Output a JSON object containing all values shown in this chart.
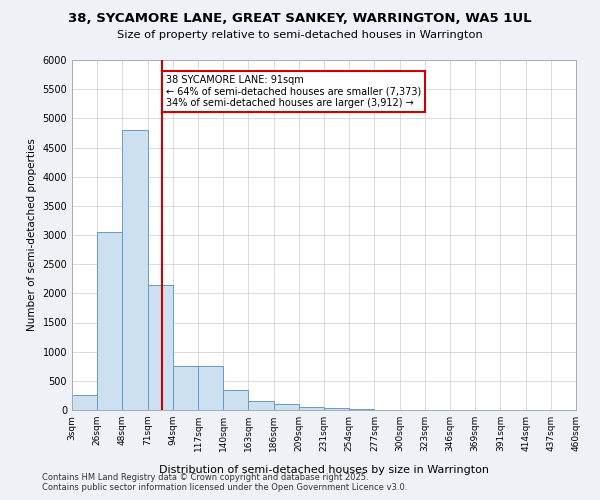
{
  "title_line1": "38, SYCAMORE LANE, GREAT SANKEY, WARRINGTON, WA5 1UL",
  "title_line2": "Size of property relative to semi-detached houses in Warrington",
  "xlabel": "Distribution of semi-detached houses by size in Warrington",
  "ylabel": "Number of semi-detached properties",
  "bins": [
    "3sqm",
    "26sqm",
    "48sqm",
    "71sqm",
    "94sqm",
    "117sqm",
    "140sqm",
    "163sqm",
    "186sqm",
    "209sqm",
    "231sqm",
    "254sqm",
    "277sqm",
    "300sqm",
    "323sqm",
    "346sqm",
    "369sqm",
    "391sqm",
    "414sqm",
    "437sqm",
    "460sqm"
  ],
  "values": [
    250,
    3050,
    4800,
    2150,
    750,
    750,
    350,
    150,
    100,
    50,
    30,
    10,
    5,
    0,
    0,
    0,
    0,
    0,
    0,
    0
  ],
  "bar_color": "#cce0f0",
  "bar_edge_color": "#6699cc",
  "vline_x_pos": 3.57,
  "vline_color": "#cc0000",
  "annotation_text": "38 SYCAMORE LANE: 91sqm\n← 64% of semi-detached houses are smaller (7,373)\n34% of semi-detached houses are larger (3,912) →",
  "annotation_box_color": "#ffffff",
  "annotation_box_edge_color": "#cc0000",
  "ylim": [
    0,
    6000
  ],
  "yticks": [
    0,
    500,
    1000,
    1500,
    2000,
    2500,
    3000,
    3500,
    4000,
    4500,
    5000,
    5500,
    6000
  ],
  "footer_text": "Contains HM Land Registry data © Crown copyright and database right 2025.\nContains public sector information licensed under the Open Government Licence v3.0.",
  "background_color": "#eef2f7",
  "plot_background_color": "#ffffff",
  "grid_color": "#cccccc"
}
